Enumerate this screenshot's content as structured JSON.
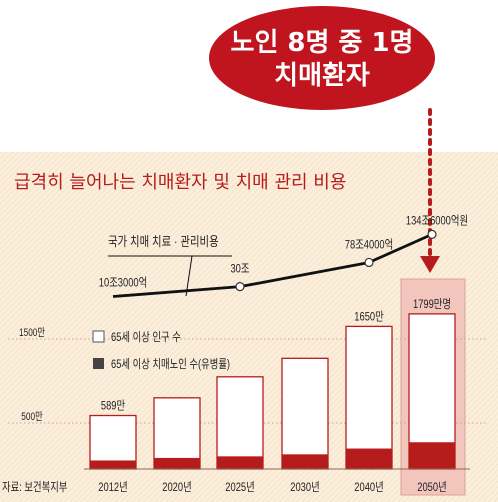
{
  "headline": {
    "line1": "노인 8명 중 1명",
    "line2": "치매환자"
  },
  "title": "급격히 늘어나는 치매환자 및 치매 관리 비용",
  "source": "자료: 보건복지부",
  "colors": {
    "accent": "#b71c1c",
    "bubble": "#c0141f",
    "panel_bg": "#fbefdc",
    "highlight_bg": "#f2c6bc",
    "bar_outline": "#b71c1c",
    "bar_fill_dark": "#b71c1c",
    "line": "#111111"
  },
  "chart_data": [
    {
      "type": "bar",
      "categories": [
        "2012년",
        "2020년",
        "2025년",
        "2030년",
        "2040년",
        "2050년"
      ],
      "series": [
        {
          "name": "65세 이상 인구 수",
          "values": [
            589,
            800,
            1050,
            1270,
            1650,
            1799
          ]
        },
        {
          "name": "65세 이상 치매노인 수(유병률)",
          "values": [
            54,
            84,
            103,
            127,
            196,
            271
          ]
        }
      ],
      "value_labels": [
        "589만",
        "",
        "",
        "",
        "1650만",
        "1799만명"
      ],
      "ytick_labels": [
        "500만",
        "1500만"
      ],
      "yticks": [
        500,
        1500
      ],
      "ylim": [
        0,
        1900
      ],
      "highlight_category": "2050년"
    },
    {
      "type": "line",
      "series_label": "국가 치매 치료 · 관리비용",
      "x": [
        "2012년",
        "2020년",
        "2025년",
        "2030년",
        "2040년",
        "2050년"
      ],
      "points": [
        {
          "x": "2012년",
          "value": 10.3,
          "label": "10조3000억"
        },
        {
          "x": "2025년",
          "value": 30,
          "label": "30조"
        },
        {
          "x": "2040년",
          "value": 78.4,
          "label": "78조4000억"
        },
        {
          "x": "2050년",
          "value": 134.6,
          "label": "134조6000억원"
        }
      ]
    }
  ]
}
